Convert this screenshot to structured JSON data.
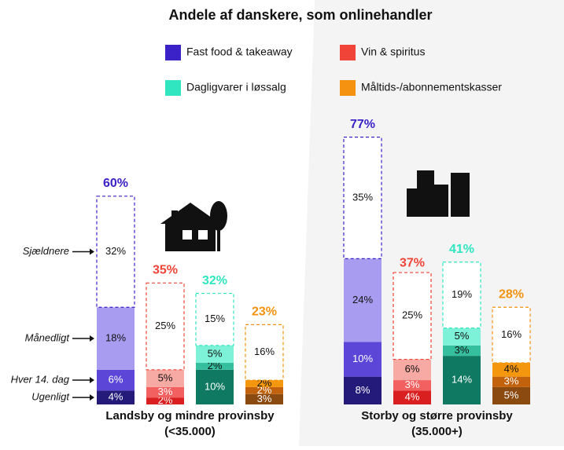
{
  "chart_data": {
    "type": "stacked_bar",
    "title": "Andele af danskere, som onlinehandler",
    "categories": [
      [
        "Landsby og mindre provinsby",
        "(<35.000)"
      ],
      [
        "Storby og større provinsby",
        "(35.000+)"
      ]
    ],
    "levels": [
      "Ugenligt",
      "Hver 14. dag",
      "Månedligt",
      "Sjældnere"
    ],
    "series": [
      {
        "name": "Fast food & takeaway",
        "color": "#3a22c8",
        "shades": [
          "#241a7a",
          "#5b46d8",
          "#a89cf0",
          "#ffffff"
        ],
        "values": [
          [
            4,
            6,
            18,
            32
          ],
          [
            8,
            10,
            24,
            35
          ]
        ],
        "value_labels": [
          [
            "4%",
            "6%",
            "18%",
            "32%"
          ],
          [
            "8%",
            "10%",
            "24%",
            "35%"
          ]
        ],
        "totals": [
          60,
          77
        ],
        "total_labels": [
          "60%",
          "77%"
        ]
      },
      {
        "name": "Vin & spiritus",
        "color": "#f04438",
        "shades": [
          "#d91f1f",
          "#f26060",
          "#f7a9a3",
          "#ffffff"
        ],
        "values": [
          [
            2,
            3,
            5,
            25
          ],
          [
            4,
            3,
            6,
            25
          ]
        ],
        "value_labels": [
          [
            "2%",
            "3%",
            "5%",
            "25%"
          ],
          [
            "4%",
            "3%",
            "6%",
            "25%"
          ]
        ],
        "totals": [
          35,
          37
        ],
        "total_labels": [
          "35%",
          "37%"
        ]
      },
      {
        "name": "Dagligvarer i løssalg",
        "color": "#2fe6c0",
        "shades": [
          "#0f7a61",
          "#35bf9e",
          "#7ef2d8",
          "#ffffff"
        ],
        "values": [
          [
            10,
            2,
            5,
            15
          ],
          [
            14,
            3,
            5,
            19
          ]
        ],
        "value_labels": [
          [
            "10%",
            "2%",
            "5%",
            "15%"
          ],
          [
            "14%",
            "3%",
            "5%",
            "19%"
          ]
        ],
        "totals": [
          32,
          41
        ],
        "total_labels": [
          "32%",
          "41%"
        ]
      },
      {
        "name": "Måltids-/abonnementskasser",
        "color": "#f5920f",
        "shades": [
          "#8a4a10",
          "#c2620c",
          "#f5960f",
          "#ffffff"
        ],
        "values": [
          [
            3,
            2,
            2,
            16
          ],
          [
            5,
            3,
            4,
            16
          ]
        ],
        "value_labels": [
          [
            "3%",
            "2%",
            "2%",
            "16%"
          ],
          [
            "5%",
            "3%",
            "4%",
            "16%"
          ]
        ],
        "totals": [
          23,
          28
        ],
        "total_labels": [
          "23%",
          "28%"
        ]
      }
    ]
  }
}
